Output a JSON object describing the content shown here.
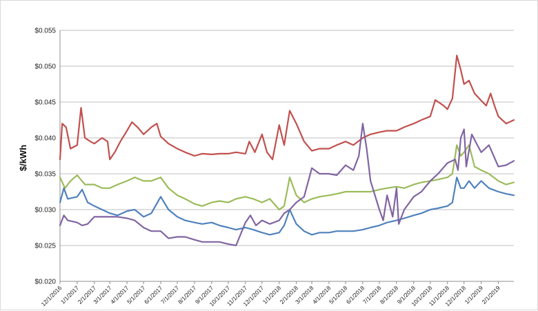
{
  "chart_data": {
    "type": "line",
    "title": "",
    "xlabel": "",
    "ylabel": "$/kWh",
    "ylim": [
      0.02,
      0.055
    ],
    "yticks": [
      "$0.020",
      "$0.025",
      "$0.030",
      "$0.035",
      "$0.040",
      "$0.045",
      "$0.050",
      "$0.055"
    ],
    "ytick_values": [
      0.02,
      0.025,
      0.03,
      0.035,
      0.04,
      0.045,
      0.05,
      0.055
    ],
    "x_start": "12/1/2016",
    "x_end": "3/1/2019",
    "xtick_labels": [
      "12/1/2016",
      "1/1/2017",
      "2/1/2017",
      "3/1/2017",
      "4/1/2017",
      "5/1/2017",
      "6/1/2017",
      "7/1/2017",
      "8/1/2017",
      "9/1/2017",
      "10/1/2017",
      "11/1/2017",
      "12/1/2017",
      "1/1/2018",
      "2/1/2018",
      "3/1/2018",
      "4/1/2018",
      "5/1/2018",
      "6/1/2018",
      "7/1/2018",
      "8/1/2018",
      "9/1/2018",
      "10/1/2018",
      "11/1/2018",
      "12/1/2018",
      "1/1/2019",
      "2/1/2019"
    ],
    "grid": true,
    "legend": "none",
    "series": [
      {
        "color": "#c0504d",
        "points": [
          [
            "12/1/2016",
            0.037
          ],
          [
            "12/5/2016",
            0.042
          ],
          [
            "12/12/2016",
            0.0415
          ],
          [
            "12/20/2016",
            0.0385
          ],
          [
            "1/1/2017",
            0.039
          ],
          [
            "1/8/2017",
            0.0442
          ],
          [
            "1/15/2017",
            0.04
          ],
          [
            "1/25/2017",
            0.0395
          ],
          [
            "2/1/2017",
            0.0392
          ],
          [
            "2/15/2017",
            0.04
          ],
          [
            "2/25/2017",
            0.0395
          ],
          [
            "3/1/2017",
            0.037
          ],
          [
            "3/10/2017",
            0.038
          ],
          [
            "3/20/2017",
            0.0395
          ],
          [
            "4/1/2017",
            0.041
          ],
          [
            "4/10/2017",
            0.0422
          ],
          [
            "4/20/2017",
            0.0415
          ],
          [
            "5/1/2017",
            0.0405
          ],
          [
            "5/15/2017",
            0.0415
          ],
          [
            "5/25/2017",
            0.042
          ],
          [
            "6/1/2017",
            0.0402
          ],
          [
            "6/15/2017",
            0.0392
          ],
          [
            "7/1/2017",
            0.0385
          ],
          [
            "7/15/2017",
            0.038
          ],
          [
            "8/1/2017",
            0.0375
          ],
          [
            "8/15/2017",
            0.0378
          ],
          [
            "9/1/2017",
            0.0377
          ],
          [
            "9/15/2017",
            0.0378
          ],
          [
            "10/1/2017",
            0.0378
          ],
          [
            "10/15/2017",
            0.038
          ],
          [
            "11/1/2017",
            0.0378
          ],
          [
            "11/8/2017",
            0.0395
          ],
          [
            "11/18/2017",
            0.038
          ],
          [
            "12/1/2017",
            0.0405
          ],
          [
            "12/10/2017",
            0.038
          ],
          [
            "12/20/2017",
            0.037
          ],
          [
            "1/1/2018",
            0.0418
          ],
          [
            "1/10/2018",
            0.039
          ],
          [
            "1/20/2018",
            0.0438
          ],
          [
            "2/1/2018",
            0.042
          ],
          [
            "2/15/2018",
            0.0395
          ],
          [
            "3/1/2018",
            0.0382
          ],
          [
            "3/15/2018",
            0.0385
          ],
          [
            "4/1/2018",
            0.0385
          ],
          [
            "4/15/2018",
            0.039
          ],
          [
            "5/1/2018",
            0.0395
          ],
          [
            "5/15/2018",
            0.039
          ],
          [
            "6/1/2018",
            0.04
          ],
          [
            "6/15/2018",
            0.0405
          ],
          [
            "7/1/2018",
            0.0408
          ],
          [
            "7/15/2018",
            0.041
          ],
          [
            "8/1/2018",
            0.041
          ],
          [
            "8/15/2018",
            0.0415
          ],
          [
            "9/1/2018",
            0.042
          ],
          [
            "9/15/2018",
            0.0425
          ],
          [
            "10/1/2018",
            0.043
          ],
          [
            "10/10/2018",
            0.0453
          ],
          [
            "10/25/2018",
            0.0445
          ],
          [
            "11/1/2018",
            0.044
          ],
          [
            "11/10/2018",
            0.0455
          ],
          [
            "11/18/2018",
            0.0515
          ],
          [
            "11/25/2018",
            0.0495
          ],
          [
            "12/1/2018",
            0.0475
          ],
          [
            "12/10/2018",
            0.048
          ],
          [
            "12/20/2018",
            0.0462
          ],
          [
            "1/1/2019",
            0.0452
          ],
          [
            "1/10/2019",
            0.0445
          ],
          [
            "1/18/2019",
            0.0462
          ],
          [
            "1/25/2019",
            0.0445
          ],
          [
            "2/1/2019",
            0.043
          ],
          [
            "2/15/2019",
            0.042
          ],
          [
            "3/1/2019",
            0.0425
          ]
        ]
      },
      {
        "color": "#9bbb59",
        "points": [
          [
            "12/1/2016",
            0.0345
          ],
          [
            "12/10/2016",
            0.033
          ],
          [
            "12/20/2016",
            0.034
          ],
          [
            "1/1/2017",
            0.0348
          ],
          [
            "1/15/2017",
            0.0335
          ],
          [
            "2/1/2017",
            0.0335
          ],
          [
            "2/15/2017",
            0.033
          ],
          [
            "3/1/2017",
            0.033
          ],
          [
            "3/15/2017",
            0.0335
          ],
          [
            "4/1/2017",
            0.034
          ],
          [
            "4/15/2017",
            0.0345
          ],
          [
            "5/1/2017",
            0.034
          ],
          [
            "5/15/2017",
            0.034
          ],
          [
            "6/1/2017",
            0.0345
          ],
          [
            "6/15/2017",
            0.033
          ],
          [
            "7/1/2017",
            0.032
          ],
          [
            "7/15/2017",
            0.0315
          ],
          [
            "8/1/2017",
            0.0308
          ],
          [
            "8/15/2017",
            0.0305
          ],
          [
            "9/1/2017",
            0.031
          ],
          [
            "9/15/2017",
            0.0312
          ],
          [
            "10/1/2017",
            0.031
          ],
          [
            "10/15/2017",
            0.0315
          ],
          [
            "11/1/2017",
            0.0318
          ],
          [
            "11/15/2017",
            0.0315
          ],
          [
            "12/1/2017",
            0.031
          ],
          [
            "12/15/2017",
            0.0315
          ],
          [
            "1/1/2018",
            0.03
          ],
          [
            "1/10/2018",
            0.0305
          ],
          [
            "1/20/2018",
            0.0345
          ],
          [
            "2/1/2018",
            0.032
          ],
          [
            "2/15/2018",
            0.031
          ],
          [
            "3/1/2018",
            0.0315
          ],
          [
            "3/15/2018",
            0.0318
          ],
          [
            "4/1/2018",
            0.032
          ],
          [
            "4/15/2018",
            0.0322
          ],
          [
            "5/1/2018",
            0.0325
          ],
          [
            "5/15/2018",
            0.0325
          ],
          [
            "6/1/2018",
            0.0325
          ],
          [
            "6/15/2018",
            0.0325
          ],
          [
            "7/1/2018",
            0.0328
          ],
          [
            "7/15/2018",
            0.033
          ],
          [
            "8/1/2018",
            0.0332
          ],
          [
            "8/15/2018",
            0.033
          ],
          [
            "9/1/2018",
            0.0335
          ],
          [
            "9/15/2018",
            0.0338
          ],
          [
            "10/1/2018",
            0.034
          ],
          [
            "10/15/2018",
            0.0342
          ],
          [
            "11/1/2018",
            0.0345
          ],
          [
            "11/10/2018",
            0.035
          ],
          [
            "11/18/2018",
            0.039
          ],
          [
            "11/25/2018",
            0.0375
          ],
          [
            "12/1/2018",
            0.038
          ],
          [
            "12/10/2018",
            0.039
          ],
          [
            "12/20/2018",
            0.036
          ],
          [
            "1/1/2019",
            0.0355
          ],
          [
            "1/15/2019",
            0.035
          ],
          [
            "2/1/2019",
            0.034
          ],
          [
            "2/15/2019",
            0.0335
          ],
          [
            "3/1/2019",
            0.0338
          ]
        ]
      },
      {
        "color": "#4f81bd",
        "points": [
          [
            "12/1/2016",
            0.031
          ],
          [
            "12/8/2016",
            0.033
          ],
          [
            "12/15/2016",
            0.0315
          ],
          [
            "1/1/2017",
            0.0318
          ],
          [
            "1/10/2017",
            0.0328
          ],
          [
            "1/20/2017",
            0.031
          ],
          [
            "2/1/2017",
            0.0305
          ],
          [
            "2/15/2017",
            0.03
          ],
          [
            "3/1/2017",
            0.0295
          ],
          [
            "3/15/2017",
            0.0292
          ],
          [
            "4/1/2017",
            0.0298
          ],
          [
            "4/15/2017",
            0.03
          ],
          [
            "5/1/2017",
            0.029
          ],
          [
            "5/15/2017",
            0.0295
          ],
          [
            "6/1/2017",
            0.0318
          ],
          [
            "6/15/2017",
            0.03
          ],
          [
            "7/1/2017",
            0.029
          ],
          [
            "7/15/2017",
            0.0285
          ],
          [
            "8/1/2017",
            0.0282
          ],
          [
            "8/15/2017",
            0.028
          ],
          [
            "9/1/2017",
            0.0282
          ],
          [
            "9/15/2017",
            0.0278
          ],
          [
            "10/1/2017",
            0.0275
          ],
          [
            "10/15/2017",
            0.0272
          ],
          [
            "11/1/2017",
            0.0275
          ],
          [
            "11/15/2017",
            0.0272
          ],
          [
            "12/1/2017",
            0.0268
          ],
          [
            "12/15/2017",
            0.0265
          ],
          [
            "1/1/2018",
            0.0268
          ],
          [
            "1/10/2018",
            0.0278
          ],
          [
            "1/20/2018",
            0.03
          ],
          [
            "2/1/2018",
            0.028
          ],
          [
            "2/15/2018",
            0.027
          ],
          [
            "3/1/2018",
            0.0265
          ],
          [
            "3/15/2018",
            0.0268
          ],
          [
            "4/1/2018",
            0.0268
          ],
          [
            "4/15/2018",
            0.027
          ],
          [
            "5/1/2018",
            0.027
          ],
          [
            "5/15/2018",
            0.027
          ],
          [
            "6/1/2018",
            0.0272
          ],
          [
            "6/15/2018",
            0.0275
          ],
          [
            "7/1/2018",
            0.0278
          ],
          [
            "7/15/2018",
            0.0282
          ],
          [
            "8/1/2018",
            0.0285
          ],
          [
            "8/15/2018",
            0.0288
          ],
          [
            "9/1/2018",
            0.0292
          ],
          [
            "9/15/2018",
            0.0295
          ],
          [
            "10/1/2018",
            0.03
          ],
          [
            "10/15/2018",
            0.0302
          ],
          [
            "11/1/2018",
            0.0305
          ],
          [
            "11/10/2018",
            0.031
          ],
          [
            "11/18/2018",
            0.0345
          ],
          [
            "11/25/2018",
            0.033
          ],
          [
            "12/1/2018",
            0.033
          ],
          [
            "12/10/2018",
            0.034
          ],
          [
            "12/20/2018",
            0.033
          ],
          [
            "1/1/2019",
            0.034
          ],
          [
            "1/15/2019",
            0.033
          ],
          [
            "2/1/2019",
            0.0325
          ],
          [
            "2/15/2019",
            0.0322
          ],
          [
            "3/1/2019",
            0.032
          ]
        ]
      },
      {
        "color": "#8064a2",
        "points": [
          [
            "12/1/2016",
            0.0278
          ],
          [
            "12/8/2016",
            0.0292
          ],
          [
            "12/15/2016",
            0.0285
          ],
          [
            "1/1/2017",
            0.0282
          ],
          [
            "1/10/2017",
            0.0278
          ],
          [
            "1/20/2017",
            0.028
          ],
          [
            "2/1/2017",
            0.029
          ],
          [
            "2/15/2017",
            0.029
          ],
          [
            "3/1/2017",
            0.029
          ],
          [
            "3/15/2017",
            0.029
          ],
          [
            "4/1/2017",
            0.0288
          ],
          [
            "4/15/2017",
            0.0285
          ],
          [
            "5/1/2017",
            0.0275
          ],
          [
            "5/15/2017",
            0.027
          ],
          [
            "6/1/2017",
            0.027
          ],
          [
            "6/15/2017",
            0.026
          ],
          [
            "7/1/2017",
            0.0262
          ],
          [
            "7/15/2017",
            0.0262
          ],
          [
            "8/1/2017",
            0.0258
          ],
          [
            "8/15/2017",
            0.0255
          ],
          [
            "9/1/2017",
            0.0255
          ],
          [
            "9/15/2017",
            0.0255
          ],
          [
            "10/1/2017",
            0.0252
          ],
          [
            "10/15/2017",
            0.025
          ],
          [
            "11/1/2017",
            0.0282
          ],
          [
            "11/10/2017",
            0.0292
          ],
          [
            "11/20/2017",
            0.0278
          ],
          [
            "12/1/2017",
            0.0285
          ],
          [
            "12/15/2017",
            0.028
          ],
          [
            "1/1/2018",
            0.0285
          ],
          [
            "1/10/2018",
            0.0295
          ],
          [
            "1/20/2018",
            0.03
          ],
          [
            "2/1/2018",
            0.031
          ],
          [
            "2/15/2018",
            0.0318
          ],
          [
            "3/1/2018",
            0.0358
          ],
          [
            "3/15/2018",
            0.035
          ],
          [
            "4/1/2018",
            0.035
          ],
          [
            "4/15/2018",
            0.0348
          ],
          [
            "5/1/2018",
            0.0362
          ],
          [
            "5/15/2018",
            0.0355
          ],
          [
            "5/25/2018",
            0.0375
          ],
          [
            "6/1/2018",
            0.042
          ],
          [
            "6/8/2018",
            0.0385
          ],
          [
            "6/15/2018",
            0.034
          ],
          [
            "7/1/2018",
            0.03
          ],
          [
            "7/8/2018",
            0.0285
          ],
          [
            "7/15/2018",
            0.032
          ],
          [
            "7/25/2018",
            0.029
          ],
          [
            "8/1/2018",
            0.033
          ],
          [
            "8/5/2018",
            0.028
          ],
          [
            "8/15/2018",
            0.03
          ],
          [
            "9/1/2018",
            0.0318
          ],
          [
            "9/15/2018",
            0.0325
          ],
          [
            "10/1/2018",
            0.034
          ],
          [
            "10/15/2018",
            0.035
          ],
          [
            "11/1/2018",
            0.0365
          ],
          [
            "11/15/2018",
            0.037
          ],
          [
            "11/20/2018",
            0.0355
          ],
          [
            "11/25/2018",
            0.04
          ],
          [
            "12/1/2018",
            0.0412
          ],
          [
            "12/5/2018",
            0.036
          ],
          [
            "12/15/2018",
            0.0405
          ],
          [
            "12/25/2018",
            0.039
          ],
          [
            "1/1/2019",
            0.038
          ],
          [
            "1/15/2019",
            0.039
          ],
          [
            "2/1/2019",
            0.036
          ],
          [
            "2/15/2019",
            0.0362
          ],
          [
            "3/1/2019",
            0.0368
          ]
        ]
      }
    ]
  }
}
